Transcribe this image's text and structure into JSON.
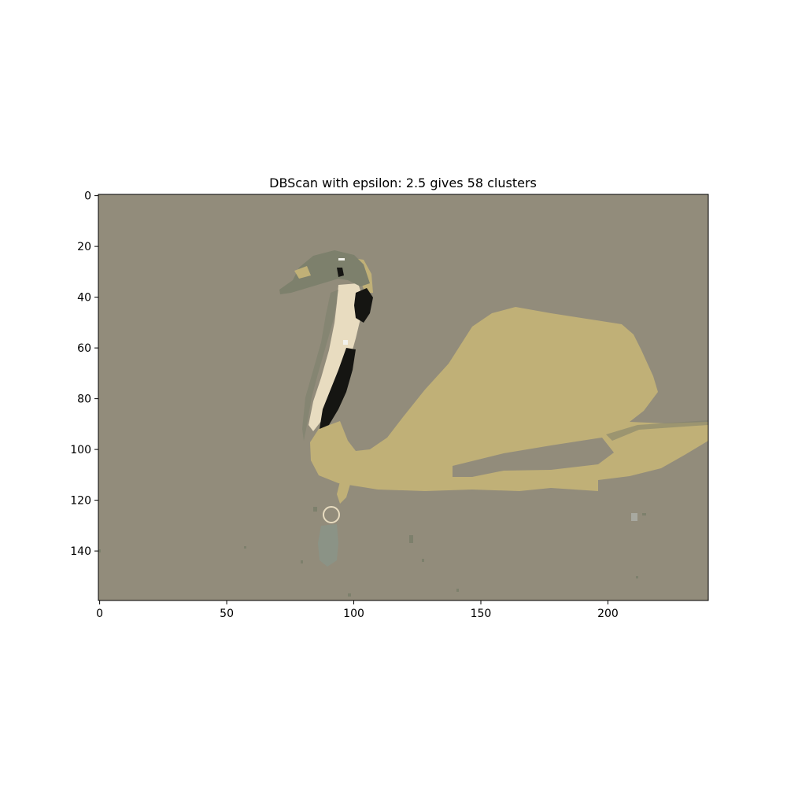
{
  "chart_data": {
    "type": "heatmap",
    "title": "DBScan with epsilon: 2.5 gives 58 clusters",
    "xlabel": "",
    "ylabel": "",
    "image_size": [
      240,
      160
    ],
    "xlim": [
      -0.5,
      239.5
    ],
    "ylim": [
      159.5,
      -0.5
    ],
    "y_axis_inverted": true,
    "grid": false,
    "xticks": [
      0,
      50,
      100,
      150,
      200
    ],
    "yticks": [
      0,
      20,
      40,
      60,
      80,
      100,
      120,
      140
    ],
    "xtick_labels": [
      "0",
      "50",
      "100",
      "150",
      "200"
    ],
    "ytick_labels": [
      "0",
      "20",
      "40",
      "60",
      "80",
      "100",
      "120",
      "140"
    ],
    "colors": {
      "background": "#928c7b",
      "body": "#c0b077",
      "head": "#7d806c",
      "dark": "#151512",
      "light": "#e8dcc0",
      "reflection": "#8b9386",
      "white": "#f2f2ec",
      "grey": "#a8a9a0"
    }
  }
}
